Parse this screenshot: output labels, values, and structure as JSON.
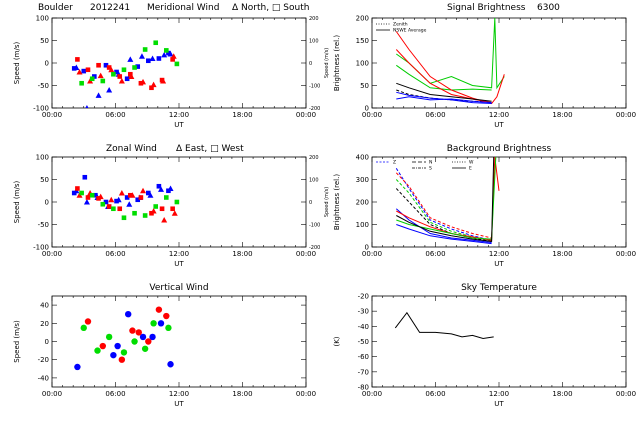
{
  "figure": {
    "site": "Boulder",
    "date": "2012241",
    "wavelength": "6300",
    "x_axis_label": "UT",
    "x_ticks": [
      "00:00",
      "06:00",
      "12:00",
      "18:00",
      "00:00"
    ]
  },
  "chart_data": [
    {
      "id": "meridional",
      "type": "scatter",
      "title": "Meridional Wind",
      "title_suffix": "Δ North, □ South",
      "ylabel": "Speed (m/s)",
      "right_ylabel": "Speed (m/s)",
      "xlim": [
        0,
        24
      ],
      "ylim": [
        -100,
        100
      ],
      "yticks": [
        -100,
        -50,
        0,
        50,
        100
      ],
      "right_ylim": [
        -200,
        200
      ],
      "right_yticks": [
        -200,
        -100,
        0,
        100,
        200
      ],
      "series": [
        {
          "color": "#0000ff",
          "marker": "triangle",
          "x": [
            2.3,
            3.3,
            4.4,
            5.4,
            6.3,
            7.4,
            8.5,
            9.5,
            10.6,
            11.2
          ],
          "y": [
            -10,
            -100,
            -72,
            -60,
            -25,
            8,
            15,
            10,
            18,
            20
          ]
        },
        {
          "color": "#0000ff",
          "marker": "square",
          "x": [
            2.1,
            3.0,
            4.0,
            5.1,
            6.1,
            7.1,
            8.1,
            9.1,
            10.1,
            11.0
          ],
          "y": [
            -12,
            -18,
            -30,
            -5,
            -20,
            -35,
            -8,
            5,
            10,
            22
          ]
        },
        {
          "color": "#ff0000",
          "marker": "triangle",
          "x": [
            2.6,
            3.6,
            4.6,
            5.6,
            6.6,
            7.5,
            8.6,
            9.6,
            10.5,
            11.5
          ],
          "y": [
            -20,
            -40,
            -28,
            -15,
            -40,
            -30,
            -42,
            -48,
            -40,
            15
          ]
        },
        {
          "color": "#ff0000",
          "marker": "square",
          "x": [
            2.4,
            3.4,
            4.4,
            5.4,
            6.4,
            7.4,
            8.4,
            9.4,
            10.4,
            11.4
          ],
          "y": [
            8,
            -15,
            -5,
            -10,
            -30,
            -25,
            -45,
            -55,
            -38,
            8
          ]
        },
        {
          "color": "#00dd00",
          "marker": "square",
          "x": [
            2.8,
            3.8,
            4.8,
            5.8,
            6.8,
            7.8,
            8.8,
            9.8,
            10.8,
            11.8
          ],
          "y": [
            -45,
            -35,
            -40,
            -25,
            -15,
            -10,
            30,
            45,
            28,
            -2
          ]
        }
      ]
    },
    {
      "id": "zonal",
      "type": "scatter",
      "title": "Zonal Wind",
      "title_suffix": "Δ East, □ West",
      "ylabel": "Speed (m/s)",
      "right_ylabel": "Speed (m/s)",
      "xlim": [
        0,
        24
      ],
      "ylim": [
        -100,
        100
      ],
      "yticks": [
        -100,
        -50,
        0,
        50,
        100
      ],
      "right_ylim": [
        -200,
        200
      ],
      "right_yticks": [
        -200,
        -100,
        0,
        100,
        200
      ],
      "series": [
        {
          "color": "#0000ff",
          "marker": "triangle",
          "x": [
            2.3,
            3.3,
            4.3,
            5.3,
            6.3,
            7.3,
            8.3,
            9.3,
            10.3,
            11.2
          ],
          "y": [
            25,
            0,
            10,
            -10,
            5,
            -5,
            10,
            15,
            28,
            30
          ]
        },
        {
          "color": "#0000ff",
          "marker": "square",
          "x": [
            2.1,
            3.1,
            4.1,
            5.1,
            6.1,
            7.1,
            8.1,
            9.1,
            10.1,
            11.0
          ],
          "y": [
            20,
            55,
            15,
            0,
            2,
            10,
            5,
            20,
            35,
            25
          ]
        },
        {
          "color": "#ff0000",
          "marker": "triangle",
          "x": [
            2.6,
            3.6,
            4.6,
            5.6,
            6.6,
            7.6,
            8.6,
            9.6,
            10.6,
            11.6
          ],
          "y": [
            15,
            20,
            12,
            5,
            20,
            15,
            25,
            -20,
            -40,
            -25
          ]
        },
        {
          "color": "#ff0000",
          "marker": "square",
          "x": [
            2.4,
            3.4,
            4.4,
            5.4,
            6.4,
            7.4,
            8.4,
            9.4,
            10.4,
            11.4
          ],
          "y": [
            30,
            10,
            8,
            -10,
            -15,
            15,
            10,
            -25,
            -15,
            -15
          ]
        },
        {
          "color": "#00dd00",
          "marker": "square",
          "x": [
            2.8,
            3.8,
            4.8,
            5.8,
            6.8,
            7.8,
            8.8,
            9.8,
            10.8,
            11.8
          ],
          "y": [
            20,
            15,
            -5,
            -15,
            -35,
            -25,
            -30,
            -10,
            10,
            0
          ]
        }
      ]
    },
    {
      "id": "vertical",
      "type": "scatter",
      "title": "Vertical Wind",
      "ylabel": "Speed (m/s)",
      "xlim": [
        0,
        24
      ],
      "ylim": [
        -50,
        50
      ],
      "yticks": [
        -40,
        -20,
        0,
        20,
        40
      ],
      "series": [
        {
          "color": "#0000ff",
          "marker": "circle",
          "x": [
            2.4,
            5.8,
            6.2,
            7.2,
            8.6,
            9.5,
            10.3,
            11.2
          ],
          "y": [
            -28,
            -15,
            -5,
            30,
            5,
            5,
            20,
            -25
          ]
        },
        {
          "color": "#ff0000",
          "marker": "circle",
          "x": [
            3.4,
            4.8,
            6.6,
            7.6,
            8.2,
            9.1,
            10.1,
            10.8
          ],
          "y": [
            22,
            -5,
            -20,
            12,
            10,
            0,
            35,
            28
          ]
        },
        {
          "color": "#00dd00",
          "marker": "circle",
          "x": [
            3.0,
            4.3,
            5.4,
            6.8,
            7.8,
            8.8,
            9.6,
            11.0
          ],
          "y": [
            15,
            -10,
            5,
            -12,
            0,
            -8,
            20,
            15
          ]
        }
      ]
    },
    {
      "id": "signal",
      "type": "line",
      "title": "Signal Brightness",
      "title_suffix": "6300",
      "ylabel": "Brightness (rel.)",
      "xlim": [
        0,
        24
      ],
      "ylim": [
        0,
        200
      ],
      "yticks": [
        0,
        50,
        100,
        150,
        200
      ],
      "legend": [
        "Zenith",
        "NSWE Average"
      ],
      "series": [
        {
          "color": "#000000",
          "dashed": true,
          "x": [
            2.3,
            3.5,
            5.5,
            7.5,
            9.5,
            11.0
          ],
          "y": [
            40,
            30,
            22,
            18,
            15,
            14
          ]
        },
        {
          "color": "#00cc00",
          "x": [
            2.3,
            3.5,
            5.5,
            7.5,
            9.5,
            11.3,
            11.6,
            11.8,
            12.5
          ],
          "y": [
            120,
            100,
            55,
            70,
            50,
            45,
            200,
            45,
            70
          ]
        },
        {
          "color": "#00cc00",
          "x": [
            2.3,
            3.5,
            5.5,
            7.5,
            9.5,
            11.3
          ],
          "y": [
            95,
            75,
            45,
            40,
            42,
            40
          ]
        },
        {
          "color": "#ff0000",
          "x": [
            2.3,
            3.5,
            5.5,
            7.5,
            9.5,
            11.3,
            11.8,
            12.5
          ],
          "y": [
            170,
            130,
            70,
            40,
            22,
            10,
            25,
            75
          ]
        },
        {
          "color": "#ff0000",
          "x": [
            2.3,
            3.5,
            5.5,
            7.5,
            9.5,
            11.3
          ],
          "y": [
            130,
            100,
            55,
            30,
            20,
            12
          ]
        },
        {
          "color": "#0000ff",
          "x": [
            2.3,
            3.5,
            5.5,
            7.5,
            9.5,
            11.3
          ],
          "y": [
            20,
            25,
            18,
            20,
            15,
            12
          ]
        },
        {
          "color": "#0000ff",
          "x": [
            2.3,
            3.5,
            5.5,
            7.5,
            9.5,
            11.3
          ],
          "y": [
            35,
            28,
            22,
            18,
            12,
            10
          ]
        },
        {
          "color": "#000000",
          "x": [
            2.3,
            3.5,
            5.5,
            7.5,
            9.5,
            11.3
          ],
          "y": [
            55,
            45,
            30,
            25,
            20,
            15
          ]
        }
      ]
    },
    {
      "id": "background",
      "type": "line",
      "title": "Background Brightness",
      "ylabel": "Brightness (rel.)",
      "xlim": [
        0,
        24
      ],
      "ylim": [
        0,
        400
      ],
      "yticks": [
        0,
        100,
        200,
        300,
        400
      ],
      "legend": [
        "Z",
        "N",
        "W",
        "S",
        "E"
      ],
      "series": [
        {
          "color": "#0000ff",
          "dashed": true,
          "x": [
            2.3,
            3.5,
            5.5,
            7.5,
            9.5,
            11.3
          ],
          "y": [
            350,
            260,
            120,
            80,
            50,
            30
          ]
        },
        {
          "color": "#ff0000",
          "dashed": true,
          "x": [
            2.3,
            3.5,
            5.5,
            7.5,
            9.5,
            11.3
          ],
          "y": [
            330,
            270,
            130,
            90,
            60,
            40
          ]
        },
        {
          "color": "#00cc00",
          "dashed": true,
          "x": [
            2.3,
            3.5,
            5.5,
            7.5,
            9.5,
            11.3
          ],
          "y": [
            300,
            240,
            110,
            70,
            45,
            30
          ]
        },
        {
          "color": "#000000",
          "dashed": true,
          "x": [
            2.3,
            3.5,
            5.5,
            7.5,
            9.5,
            11.3
          ],
          "y": [
            260,
            200,
            100,
            60,
            40,
            25
          ]
        },
        {
          "color": "#0000ff",
          "x": [
            2.3,
            3.5,
            5.5,
            7.5,
            9.5,
            11.3
          ],
          "y": [
            170,
            120,
            60,
            40,
            30,
            20
          ]
        },
        {
          "color": "#ff0000",
          "x": [
            2.3,
            3.5,
            5.5,
            7.5,
            9.5,
            11.3,
            11.6,
            12.0
          ],
          "y": [
            160,
            130,
            90,
            60,
            45,
            30,
            400,
            250
          ]
        },
        {
          "color": "#00cc00",
          "x": [
            2.3,
            3.5,
            5.5,
            7.5,
            9.5,
            11.3,
            11.7
          ],
          "y": [
            120,
            100,
            80,
            60,
            40,
            35,
            400
          ]
        },
        {
          "color": "#000000",
          "x": [
            2.3,
            3.5,
            5.5,
            7.5,
            9.5,
            11.3,
            11.5
          ],
          "y": [
            140,
            110,
            70,
            50,
            35,
            25,
            400
          ]
        },
        {
          "color": "#0000ff",
          "x": [
            2.3,
            3.5,
            5.5,
            7.5,
            9.5,
            11.3
          ],
          "y": [
            100,
            80,
            50,
            35,
            25,
            15
          ]
        }
      ]
    },
    {
      "id": "sky",
      "type": "line",
      "title": "Sky Temperature",
      "ylabel": "(K)",
      "xlim": [
        0,
        24
      ],
      "ylim": [
        -80,
        -20
      ],
      "yticks": [
        -80,
        -70,
        -60,
        -50,
        -40,
        -30,
        -20
      ],
      "series": [
        {
          "color": "#000000",
          "x": [
            2.2,
            3.3,
            4.5,
            6.0,
            7.5,
            8.5,
            9.5,
            10.5,
            11.5
          ],
          "y": [
            -41,
            -31,
            -44,
            -44,
            -45,
            -47,
            -46,
            -48,
            -47
          ]
        }
      ]
    }
  ]
}
